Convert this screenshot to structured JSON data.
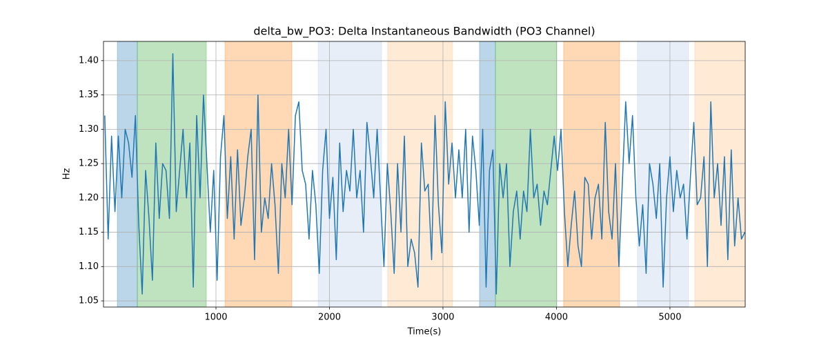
{
  "chart_data": {
    "type": "line",
    "title": "delta_bw_PO3: Delta Instantaneous Bandwidth (PO3 Channel)",
    "xlabel": "Time(s)",
    "ylabel": "Hz",
    "xlim": [
      9,
      5663
    ],
    "ylim": [
      1.041,
      1.428
    ],
    "xticks": [
      1000,
      2000,
      3000,
      4000,
      5000
    ],
    "yticks": [
      1.05,
      {
        "value": 1.1,
        "label": "1.10"
      },
      1.15,
      {
        "value": 1.2,
        "label": "1.20"
      },
      1.25,
      {
        "value": 1.3,
        "label": "1.30"
      },
      1.35,
      {
        "value": 1.4,
        "label": "1.40"
      }
    ],
    "grid": true,
    "span_alpha": 0.3,
    "spans": [
      {
        "x0": 131,
        "x1": 307,
        "color": "#1f77b4"
      },
      {
        "x0": 307,
        "x1": 915,
        "color": "#2ca02c"
      },
      {
        "x0": 1079,
        "x1": 1669,
        "color": "#ff7f0e"
      },
      {
        "x0": 1900,
        "x1": 2459,
        "color": "#aec7e8"
      },
      {
        "x0": 2513,
        "x1": 3085,
        "color": "#ffbb78"
      },
      {
        "x0": 3322,
        "x1": 3462,
        "color": "#1f77b4"
      },
      {
        "x0": 3462,
        "x1": 4003,
        "color": "#2ca02c"
      },
      {
        "x0": 4063,
        "x1": 4556,
        "color": "#ff7f0e"
      },
      {
        "x0": 4714,
        "x1": 5164,
        "color": "#aec7e8"
      },
      {
        "x0": 5219,
        "x1": 5663,
        "color": "#ffbb78"
      }
    ],
    "x": [
      20,
      50,
      80,
      110,
      140,
      170,
      200,
      230,
      260,
      290,
      320,
      350,
      380,
      410,
      440,
      470,
      500,
      530,
      560,
      590,
      620,
      650,
      680,
      710,
      740,
      770,
      800,
      830,
      860,
      890,
      920,
      950,
      980,
      1010,
      1040,
      1070,
      1100,
      1130,
      1160,
      1190,
      1220,
      1250,
      1280,
      1310,
      1340,
      1370,
      1400,
      1430,
      1460,
      1490,
      1520,
      1550,
      1580,
      1610,
      1640,
      1670,
      1700,
      1730,
      1760,
      1790,
      1820,
      1850,
      1880,
      1910,
      1940,
      1970,
      2000,
      2030,
      2060,
      2090,
      2120,
      2150,
      2180,
      2210,
      2240,
      2270,
      2300,
      2330,
      2360,
      2390,
      2420,
      2450,
      2480,
      2510,
      2540,
      2570,
      2600,
      2630,
      2660,
      2690,
      2720,
      2750,
      2780,
      2810,
      2840,
      2870,
      2900,
      2930,
      2960,
      2990,
      3020,
      3050,
      3080,
      3110,
      3140,
      3170,
      3200,
      3230,
      3260,
      3290,
      3320,
      3350,
      3380,
      3410,
      3440,
      3470,
      3500,
      3530,
      3560,
      3590,
      3620,
      3650,
      3680,
      3710,
      3740,
      3770,
      3800,
      3830,
      3860,
      3890,
      3920,
      3950,
      3980,
      4010,
      4040,
      4070,
      4100,
      4130,
      4160,
      4190,
      4220,
      4250,
      4280,
      4310,
      4340,
      4370,
      4400,
      4430,
      4460,
      4490,
      4520,
      4550,
      4580,
      4610,
      4640,
      4670,
      4700,
      4730,
      4760,
      4790,
      4820,
      4850,
      4880,
      4910,
      4940,
      4970,
      5000,
      5030,
      5060,
      5090,
      5120,
      5150,
      5180,
      5210,
      5240,
      5270,
      5300,
      5330,
      5360,
      5390,
      5420,
      5450,
      5480,
      5510,
      5540,
      5570,
      5600,
      5630,
      5660
    ],
    "series": [
      {
        "color": "#1f77b4",
        "values": [
          1.32,
          1.14,
          1.29,
          1.18,
          1.29,
          1.2,
          1.3,
          1.28,
          1.23,
          1.32,
          1.16,
          1.06,
          1.24,
          1.17,
          1.08,
          1.28,
          1.17,
          1.25,
          1.24,
          1.17,
          1.41,
          1.18,
          1.24,
          1.3,
          1.2,
          1.28,
          1.07,
          1.32,
          1.2,
          1.35,
          1.25,
          1.15,
          1.24,
          1.08,
          1.26,
          1.32,
          1.17,
          1.26,
          1.14,
          1.27,
          1.16,
          1.2,
          1.26,
          1.3,
          1.11,
          1.35,
          1.15,
          1.2,
          1.17,
          1.25,
          1.19,
          1.09,
          1.25,
          1.2,
          1.3,
          1.19,
          1.32,
          1.34,
          1.24,
          1.22,
          1.14,
          1.24,
          1.19,
          1.09,
          1.24,
          1.3,
          1.17,
          1.23,
          1.11,
          1.28,
          1.18,
          1.24,
          1.21,
          1.3,
          1.2,
          1.24,
          1.15,
          1.31,
          1.26,
          1.2,
          1.3,
          1.2,
          1.1,
          1.25,
          1.18,
          1.09,
          1.25,
          1.15,
          1.29,
          1.1,
          1.14,
          1.12,
          1.07,
          1.28,
          1.21,
          1.22,
          1.11,
          1.32,
          1.19,
          1.12,
          1.34,
          1.22,
          1.28,
          1.2,
          1.27,
          1.2,
          1.3,
          1.15,
          1.29,
          1.24,
          1.16,
          1.3,
          1.07,
          1.24,
          1.27,
          1.06,
          1.25,
          1.2,
          1.25,
          1.1,
          1.18,
          1.21,
          1.14,
          1.21,
          1.18,
          1.3,
          1.2,
          1.22,
          1.16,
          1.21,
          1.19,
          1.24,
          1.29,
          1.24,
          1.3,
          1.18,
          1.1,
          1.16,
          1.21,
          1.13,
          1.1,
          1.23,
          1.22,
          1.14,
          1.2,
          1.22,
          1.14,
          1.31,
          1.18,
          1.14,
          1.25,
          1.1,
          1.22,
          1.34,
          1.25,
          1.32,
          1.2,
          1.13,
          1.19,
          1.09,
          1.25,
          1.22,
          1.17,
          1.25,
          1.07,
          1.2,
          1.26,
          1.18,
          1.24,
          1.2,
          1.22,
          1.14,
          1.23,
          1.31,
          1.19,
          1.2,
          1.26,
          1.1,
          1.34,
          1.2,
          1.25,
          1.16,
          1.26,
          1.11,
          1.27,
          1.13,
          1.2,
          1.14,
          1.15
        ]
      }
    ]
  }
}
